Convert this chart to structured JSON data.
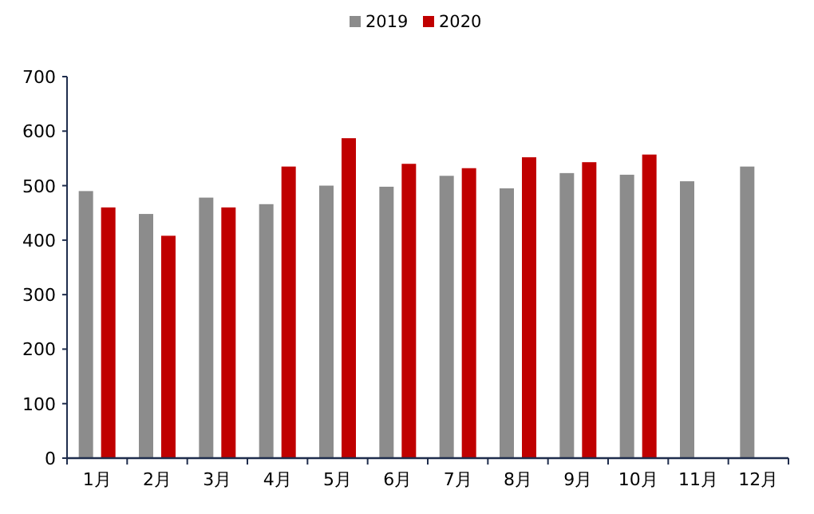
{
  "chart_data": {
    "type": "bar",
    "categories": [
      "1月",
      "2月",
      "3月",
      "4月",
      "5月",
      "6月",
      "7月",
      "8月",
      "9月",
      "10月",
      "11月",
      "12月"
    ],
    "series": [
      {
        "name": "2019",
        "color": "#8c8c8c",
        "values": [
          490,
          448,
          478,
          466,
          500,
          498,
          518,
          495,
          523,
          520,
          508,
          535
        ]
      },
      {
        "name": "2020",
        "color": "#c00000",
        "values": [
          460,
          408,
          460,
          535,
          587,
          540,
          532,
          552,
          543,
          557,
          null,
          null
        ]
      }
    ],
    "ylim": [
      0,
      700
    ],
    "yticks": [
      0,
      100,
      200,
      300,
      400,
      500,
      600,
      700
    ],
    "legend": "top",
    "grid": false
  }
}
